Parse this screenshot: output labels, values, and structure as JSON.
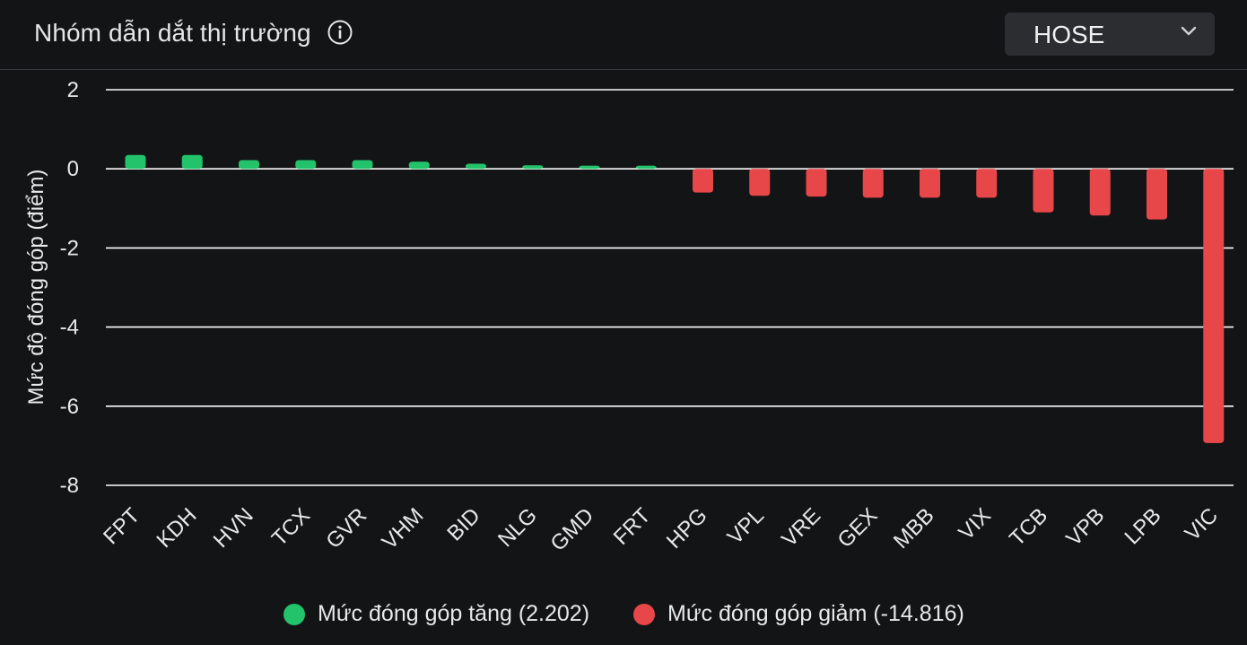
{
  "header": {
    "title": "Nhóm dẫn dắt thị trường",
    "info_icon": "info-icon",
    "exchange_select": {
      "selected": "HOSE",
      "icon": "chevron-down-icon"
    }
  },
  "colors": {
    "positive": "#22c36a",
    "negative": "#e84749",
    "background": "#131416",
    "grid": "#ffffff",
    "text": "#e8e8e8"
  },
  "chart_data": {
    "type": "bar",
    "title": "",
    "xlabel": "",
    "ylabel": "Mức độ đóng góp (điểm)",
    "ylim": [
      -8,
      2
    ],
    "yticks": [
      2,
      0,
      -2,
      -4,
      -6,
      -8
    ],
    "ytick_labels": [
      "2",
      "0",
      "-2",
      "-4",
      "-6",
      "-8"
    ],
    "grid": true,
    "categories": [
      "FPT",
      "KDH",
      "HVN",
      "TCX",
      "GVR",
      "VHM",
      "BID",
      "NLG",
      "GMD",
      "FRT",
      "HPG",
      "VPL",
      "VRE",
      "GEX",
      "MBB",
      "VIX",
      "TCB",
      "VPB",
      "LPB",
      "VIC"
    ],
    "values": [
      0.35,
      0.35,
      0.22,
      0.22,
      0.22,
      0.18,
      0.13,
      0.09,
      0.08,
      0.08,
      -0.6,
      -0.68,
      -0.7,
      -0.73,
      -0.73,
      -0.73,
      -1.1,
      -1.18,
      -1.28,
      -6.93
    ],
    "legend_position": "bottom-center",
    "legend": [
      {
        "label": "Mức đóng góp tăng (2.202)",
        "color": "#22c36a"
      },
      {
        "label": "Mức đóng góp giảm (-14.816)",
        "color": "#e84749"
      }
    ]
  }
}
